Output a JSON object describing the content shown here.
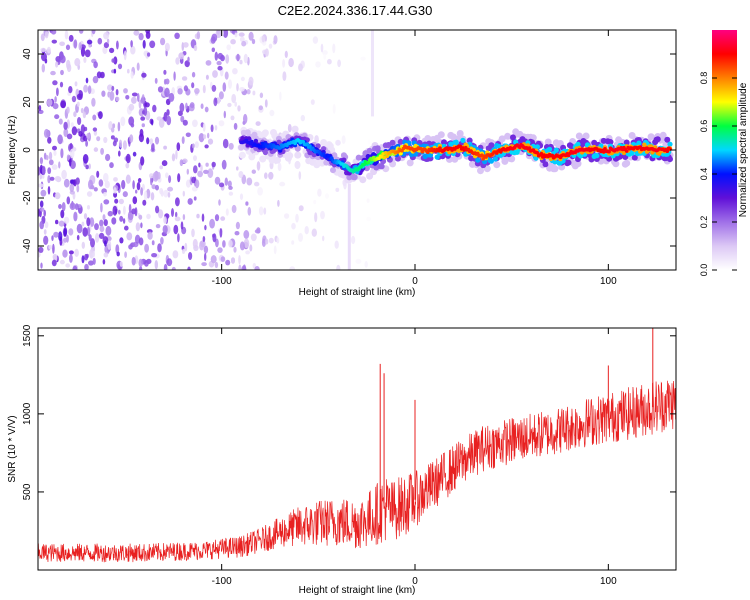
{
  "title": "C2E2.2024.336.17.44.G30",
  "chart_data": [
    {
      "type": "heatmap",
      "xlabel": "Height of straight line (km)",
      "ylabel": "Frequency (Hz)",
      "xlim": [
        -195,
        135
      ],
      "ylim": [
        -50,
        50
      ],
      "xticks": [
        -100,
        0,
        100
      ],
      "yticks": [
        -40,
        -20,
        0,
        20,
        40
      ],
      "grid": false,
      "colorbar": {
        "label": "Normalized spectral amplitude",
        "range": [
          0,
          1
        ],
        "ticks": [
          0,
          0.2,
          0.4,
          0.6,
          0.8
        ],
        "tick_labels": [
          "0.0",
          "0.2",
          "0.4",
          "0.6",
          "0.8"
        ],
        "colormap": [
          "#ffffff",
          "#dcc8f5",
          "#a070e8",
          "#6010d8",
          "#0010ff",
          "#00d8ff",
          "#00ff40",
          "#ffff00",
          "#ff8000",
          "#ff0000",
          "#ff0080"
        ]
      },
      "ridge": {
        "x": [
          -90,
          -80,
          -70,
          -60,
          -52,
          -45,
          -38,
          -32,
          -25,
          -15,
          -5,
          5,
          15,
          25,
          35,
          45,
          55,
          65,
          75,
          85,
          95,
          105,
          115,
          125,
          132
        ],
        "y": [
          4,
          2,
          1,
          4,
          0,
          -3,
          -6,
          -9,
          -5,
          -2,
          1,
          0,
          0,
          1,
          -3,
          0,
          2,
          -2,
          -3,
          0,
          0,
          0,
          1,
          0,
          0
        ],
        "amplitude": [
          0.35,
          0.4,
          0.45,
          0.5,
          0.45,
          0.4,
          0.5,
          0.55,
          0.6,
          0.75,
          0.85,
          0.85,
          0.9,
          0.9,
          0.85,
          0.9,
          0.92,
          0.9,
          0.9,
          0.92,
          0.9,
          0.92,
          0.9,
          0.92,
          0.9
        ]
      },
      "noise_level": {
        "x": [
          -195,
          -140,
          -100,
          -80,
          -60,
          -40,
          -30,
          -20
        ],
        "amplitude": [
          0.2,
          0.2,
          0.16,
          0.1,
          0.06,
          0.04,
          0.03,
          0.0
        ]
      },
      "streaks": [
        {
          "x": -34,
          "y_range": [
            -50,
            -14
          ],
          "amplitude": 0.08
        },
        {
          "x": -22,
          "y_range": [
            14,
            50
          ],
          "amplitude": 0.06
        }
      ]
    },
    {
      "type": "line",
      "xlabel": "Height of straight line (km)",
      "ylabel": "SNR (10 * V/V)",
      "xlim": [
        -195,
        135
      ],
      "ylim": [
        0,
        1550
      ],
      "xticks": [
        -100,
        0,
        100
      ],
      "yticks": [
        500,
        1000,
        1500
      ],
      "grid": false,
      "color": "#e82020",
      "series": [
        {
          "x": [
            -195,
            -170,
            -140,
            -110,
            -90,
            -80,
            -70,
            -60,
            -50,
            -40,
            -30,
            -25,
            -20,
            -15,
            -12,
            -5,
            0,
            5,
            10,
            15,
            25,
            35,
            50,
            70,
            90,
            110,
            125,
            135
          ],
          "mean": [
            110,
            110,
            110,
            125,
            150,
            190,
            240,
            280,
            300,
            310,
            300,
            320,
            360,
            400,
            380,
            420,
            450,
            500,
            550,
            600,
            700,
            780,
            830,
            880,
            950,
            1000,
            1050,
            1080
          ],
          "noise": [
            60,
            60,
            60,
            60,
            70,
            80,
            100,
            130,
            150,
            160,
            170,
            180,
            200,
            220,
            200,
            200,
            180,
            170,
            160,
            160,
            150,
            150,
            150,
            150,
            160,
            170,
            180,
            180
          ]
        }
      ],
      "spikes": [
        {
          "x": -18,
          "y": 1320
        },
        {
          "x": -16,
          "y": 1260
        },
        {
          "x": 0,
          "y": 1090
        },
        {
          "x": 123,
          "y": 1590
        },
        {
          "x": 100,
          "y": 1310
        }
      ]
    }
  ]
}
